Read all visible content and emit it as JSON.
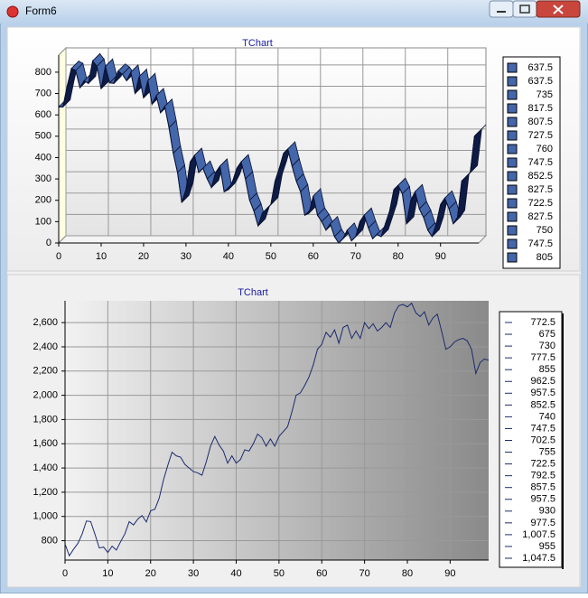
{
  "window": {
    "title": "Form6"
  },
  "chart_data": [
    {
      "type": "line3d",
      "title": "TChart",
      "x": [
        0,
        1,
        2,
        3,
        4,
        5,
        6,
        7,
        8,
        9,
        10,
        11,
        12,
        13,
        14,
        15,
        16,
        17,
        18,
        19,
        20,
        21,
        22,
        23,
        24,
        25,
        26,
        27,
        28,
        29,
        30,
        31,
        32,
        33,
        34,
        35,
        36,
        37,
        38,
        39,
        40,
        41,
        42,
        43,
        44,
        45,
        46,
        47,
        48,
        49,
        50,
        51,
        52,
        53,
        54,
        55,
        56,
        57,
        58,
        59,
        60,
        61,
        62,
        63,
        64,
        65,
        66,
        67,
        68,
        69,
        70,
        71,
        72,
        73,
        74,
        75,
        76,
        77,
        78,
        79,
        80,
        81,
        82,
        83,
        84,
        85,
        86,
        87,
        88,
        89,
        90,
        91,
        92,
        93,
        94,
        95,
        96,
        97,
        98,
        99
      ],
      "series": [
        {
          "color": "#4466aa",
          "values": [
            637.5,
            637.5,
            735,
            817.5,
            807.5,
            727.5,
            760,
            747.5,
            852.5,
            827.5,
            722.5,
            827.5,
            750,
            747.5,
            805,
            790,
            760,
            800,
            700,
            780,
            680,
            760,
            650,
            690,
            610,
            640,
            540,
            420,
            330,
            190,
            250,
            380,
            410,
            330,
            350,
            300,
            260,
            330,
            360,
            240,
            250,
            290,
            350,
            380,
            300,
            200,
            150,
            80,
            140,
            160,
            180,
            290,
            350,
            420,
            440,
            360,
            290,
            240,
            130,
            140,
            220,
            130,
            100,
            60,
            90,
            30,
            0,
            20,
            60,
            10,
            30,
            100,
            130,
            70,
            20,
            40,
            30,
            90,
            150,
            250,
            270,
            230,
            90,
            200,
            240,
            160,
            120,
            60,
            30,
            90,
            180,
            210,
            160,
            90,
            120,
            290,
            310,
            330,
            500,
            520
          ]
        }
      ],
      "xlim": [
        0,
        99
      ],
      "xticks": [
        0,
        10,
        20,
        30,
        40,
        50,
        60,
        70,
        80,
        90
      ],
      "ylim": [
        0,
        880
      ],
      "yticks": [
        0,
        100,
        200,
        300,
        400,
        500,
        600,
        700,
        800
      ],
      "grid": true
    },
    {
      "type": "line",
      "title": "TChart",
      "x": [
        0,
        1,
        2,
        3,
        4,
        5,
        6,
        7,
        8,
        9,
        10,
        11,
        12,
        13,
        14,
        15,
        16,
        17,
        18,
        19,
        20,
        21,
        22,
        23,
        24,
        25,
        26,
        27,
        28,
        29,
        30,
        31,
        32,
        33,
        34,
        35,
        36,
        37,
        38,
        39,
        40,
        41,
        42,
        43,
        44,
        45,
        46,
        47,
        48,
        49,
        50,
        51,
        52,
        53,
        54,
        55,
        56,
        57,
        58,
        59,
        60,
        61,
        62,
        63,
        64,
        65,
        66,
        67,
        68,
        69,
        70,
        71,
        72,
        73,
        74,
        75,
        76,
        77,
        78,
        79,
        80,
        81,
        82,
        83,
        84,
        85,
        86,
        87,
        88,
        89,
        90,
        91,
        92,
        93,
        94,
        95,
        96,
        97,
        98,
        99
      ],
      "series": [
        {
          "color": "#1c2a6e",
          "values": [
            772.5,
            675,
            730,
            777.5,
            855,
            962.5,
            957.5,
            852.5,
            740,
            747.5,
            702.5,
            755,
            722.5,
            792.5,
            857.5,
            957.5,
            930,
            977.5,
            1007.5,
            955,
            1047.5,
            1060,
            1150,
            1300,
            1420,
            1530,
            1500,
            1490,
            1430,
            1400,
            1370,
            1360,
            1340,
            1450,
            1580,
            1660,
            1590,
            1540,
            1440,
            1500,
            1440,
            1470,
            1550,
            1540,
            1600,
            1680,
            1650,
            1580,
            1640,
            1580,
            1660,
            1700,
            1740,
            1860,
            2000,
            2020,
            2080,
            2150,
            2250,
            2380,
            2420,
            2520,
            2480,
            2540,
            2430,
            2560,
            2580,
            2470,
            2530,
            2470,
            2600,
            2550,
            2590,
            2530,
            2560,
            2600,
            2560,
            2680,
            2740,
            2750,
            2730,
            2760,
            2680,
            2650,
            2690,
            2580,
            2640,
            2670,
            2530,
            2380,
            2400,
            2440,
            2460,
            2470,
            2450,
            2380,
            2180,
            2270,
            2300,
            2290
          ],
          "value_labels": [
            "772.5",
            "675",
            "730",
            "777.5",
            "855",
            "962.5",
            "957.5",
            "852.5",
            "740",
            "747.5",
            "702.5",
            "755",
            "722.5",
            "792.5",
            "857.5",
            "957.5",
            "930",
            "977.5",
            "1,007.5",
            "955",
            "1,047.5",
            null,
            null,
            null,
            null,
            null,
            null,
            null,
            null,
            null,
            null,
            null,
            null,
            null,
            null,
            null,
            null,
            null,
            null,
            null,
            null,
            null,
            null,
            null,
            null,
            null,
            null,
            null,
            null,
            null,
            null,
            null,
            null,
            null,
            null,
            null,
            null,
            null,
            null,
            null,
            null,
            null,
            null,
            null,
            null,
            null,
            null,
            null,
            null,
            null,
            null,
            null,
            null,
            null,
            null,
            null,
            null,
            null,
            null,
            null,
            null,
            null,
            null,
            null,
            null,
            null,
            null,
            null,
            null,
            null,
            null,
            null,
            null,
            null,
            null,
            null,
            null,
            null,
            null,
            null
          ]
        }
      ],
      "xlim": [
        0,
        99
      ],
      "xticks": [
        0,
        10,
        20,
        30,
        40,
        50,
        60,
        70,
        80,
        90
      ],
      "ylim": [
        640,
        2780
      ],
      "yticks": [
        800,
        {
          "value": 1000,
          "label": "1,000"
        },
        {
          "value": 1200,
          "label": "1,200"
        },
        {
          "value": 1400,
          "label": "1,400"
        },
        {
          "value": 1600,
          "label": "1,600"
        },
        {
          "value": 1800,
          "label": "1,800"
        },
        {
          "value": 2000,
          "label": "2,000"
        },
        {
          "value": 2200,
          "label": "2,200"
        },
        {
          "value": 2400,
          "label": "2,400"
        },
        {
          "value": 2600,
          "label": "2,600"
        }
      ],
      "grid": true
    }
  ]
}
